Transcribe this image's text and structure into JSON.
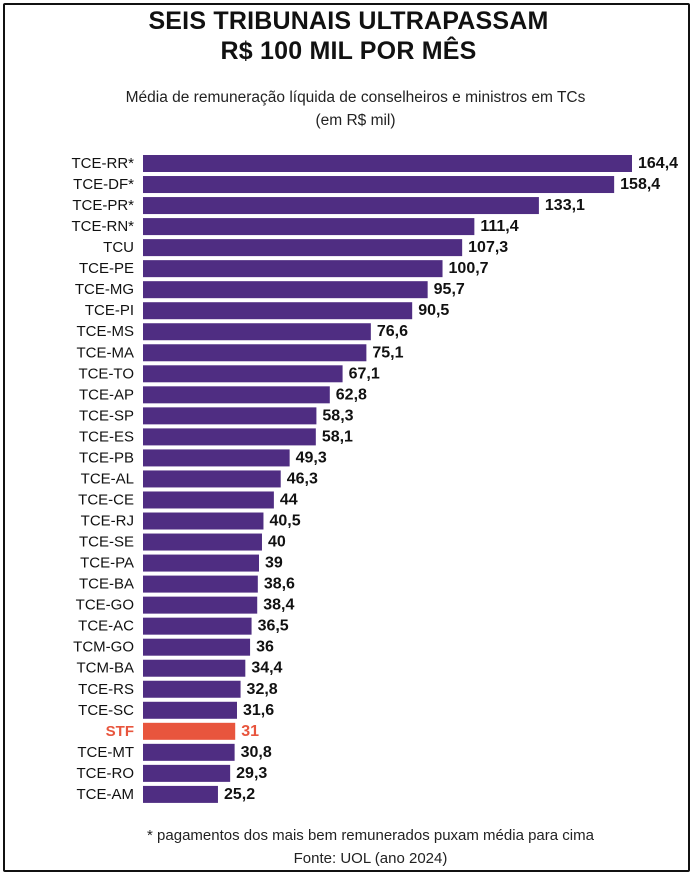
{
  "title_line1": "SEIS TRIBUNAIS ULTRAPASSAM",
  "title_line2": "R$ 100 MIL POR MÊS",
  "subtitle_line1": "Média de remuneração líquida de conselheiros e ministros em TCs",
  "subtitle_line2": "(em R$ mil)",
  "footnote_line1": "* pagamentos dos mais bem remunerados puxam média para cima",
  "footnote_line2": "Fonte: UOL (ano 2024)",
  "colors": {
    "bar": "#4f2d82",
    "highlight": "#e8553d",
    "text": "#111111"
  },
  "chart_data": {
    "type": "bar",
    "orientation": "horizontal",
    "highlighted_category": "STF",
    "categories": [
      "TCE-RR*",
      "TCE-DF*",
      "TCE-PR*",
      "TCE-RN*",
      "TCU",
      "TCE-PE",
      "TCE-MG",
      "TCE-PI",
      "TCE-MS",
      "TCE-MA",
      "TCE-TO",
      "TCE-AP",
      "TCE-SP",
      "TCE-ES",
      "TCE-PB",
      "TCE-AL",
      "TCE-CE",
      "TCE-RJ",
      "TCE-SE",
      "TCE-PA",
      "TCE-BA",
      "TCE-GO",
      "TCE-AC",
      "TCM-GO",
      "TCM-BA",
      "TCE-RS",
      "TCE-SC",
      "STF",
      "TCE-MT",
      "TCE-RO",
      "TCE-AM"
    ],
    "values": [
      164.4,
      158.4,
      133.1,
      111.4,
      107.3,
      100.7,
      95.7,
      90.5,
      76.6,
      75.1,
      67.1,
      62.8,
      58.3,
      58.1,
      49.3,
      46.3,
      44,
      40.5,
      40,
      39,
      38.6,
      38.4,
      36.5,
      36,
      34.4,
      32.8,
      31.6,
      31,
      30.8,
      29.3,
      25.2
    ],
    "value_labels": [
      "164,4",
      "158,4",
      "133,1",
      "111,4",
      "107,3",
      "100,7",
      "95,7",
      "90,5",
      "76,6",
      "75,1",
      "67,1",
      "62,8",
      "58,3",
      "58,1",
      "49,3",
      "46,3",
      "44",
      "40,5",
      "40",
      "39",
      "38,6",
      "38,4",
      "36,5",
      "36",
      "34,4",
      "32,8",
      "31,6",
      "31",
      "30,8",
      "29,3",
      "25,2"
    ],
    "xlim": [
      0,
      164.4
    ]
  }
}
